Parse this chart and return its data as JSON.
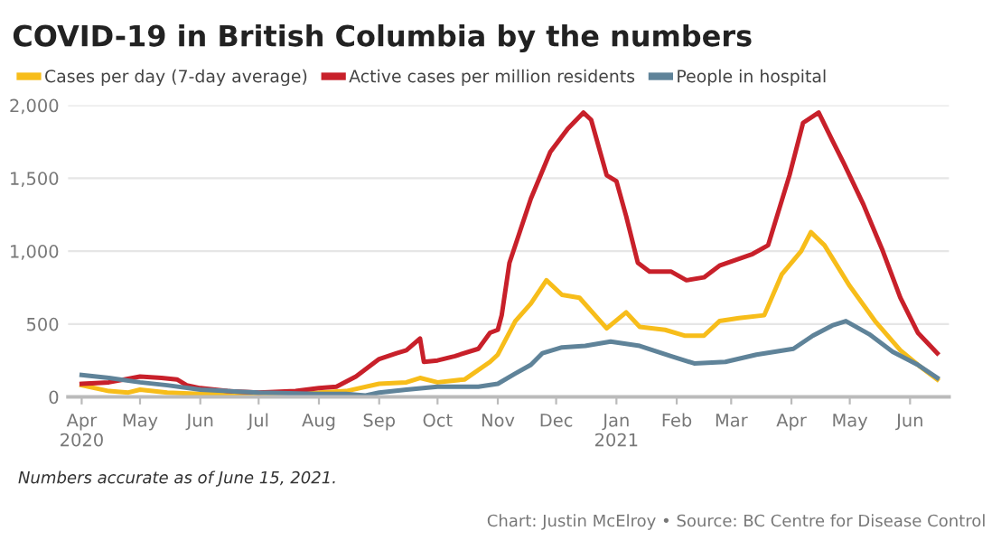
{
  "chart_data": {
    "type": "line",
    "title": "COVID-19 in British Columbia by the numbers",
    "annotations": [
      "Numbers accurate as of June 15, 2021.",
      "Chart: Justin McElroy • Source: BC Centre for Disease Control"
    ],
    "legend": "top left",
    "grid": "y",
    "marker": "none",
    "line_style": "solid",
    "xlim": [
      "2020-03-25",
      "2021-06-21"
    ],
    "xticks": [
      {
        "value": "2020-04-01",
        "label": "Apr\n2020"
      },
      {
        "value": "2020-05-01",
        "label": "May"
      },
      {
        "value": "2020-06-01",
        "label": "Jun"
      },
      {
        "value": "2020-07-01",
        "label": "Jul"
      },
      {
        "value": "2020-08-01",
        "label": "Aug"
      },
      {
        "value": "2020-09-01",
        "label": "Sep"
      },
      {
        "value": "2020-10-01",
        "label": "Oct"
      },
      {
        "value": "2020-11-01",
        "label": "Nov"
      },
      {
        "value": "2020-12-01",
        "label": "Dec"
      },
      {
        "value": "2021-01-01",
        "label": "Jan\n2021"
      },
      {
        "value": "2021-02-01",
        "label": "Feb"
      },
      {
        "value": "2021-03-01",
        "label": "Mar"
      },
      {
        "value": "2021-04-01",
        "label": "Apr"
      },
      {
        "value": "2021-05-01",
        "label": "May"
      },
      {
        "value": "2021-06-01",
        "label": "Jun"
      }
    ],
    "ylim": [
      0,
      2000
    ],
    "yticks": [
      0,
      {
        "value": 500,
        "label": "500"
      },
      {
        "value": 1000,
        "label": "1,000"
      },
      {
        "value": 1500,
        "label": "1,500"
      },
      {
        "value": 2000,
        "label": "2,000"
      }
    ],
    "series": [
      {
        "name": "Cases per day (7-day average)",
        "color": "#f7bd1a",
        "x": [
          "2020-04-01",
          "2020-04-15",
          "2020-04-25",
          "2020-05-01",
          "2020-05-15",
          "2020-06-01",
          "2020-07-01",
          "2020-08-01",
          "2020-08-15",
          "2020-09-01",
          "2020-09-15",
          "2020-09-22",
          "2020-10-01",
          "2020-10-15",
          "2020-10-28",
          "2020-11-01",
          "2020-11-10",
          "2020-11-18",
          "2020-11-26",
          "2020-12-04",
          "2020-12-13",
          "2020-12-21",
          "2020-12-27",
          "2021-01-06",
          "2021-01-13",
          "2021-01-26",
          "2021-02-05",
          "2021-02-15",
          "2021-02-23",
          "2021-03-05",
          "2021-03-18",
          "2021-03-27",
          "2021-04-06",
          "2021-04-11",
          "2021-04-18",
          "2021-05-01",
          "2021-05-14",
          "2021-05-27",
          "2021-06-05",
          "2021-06-15"
        ],
        "values": [
          80,
          40,
          30,
          50,
          30,
          20,
          20,
          30,
          40,
          90,
          100,
          130,
          100,
          120,
          240,
          290,
          520,
          640,
          800,
          700,
          680,
          560,
          470,
          580,
          480,
          460,
          420,
          420,
          520,
          540,
          560,
          840,
          1000,
          1130,
          1040,
          760,
          520,
          320,
          220,
          120
        ]
      },
      {
        "name": "Active cases per million residents",
        "color": "#c8202a",
        "x": [
          "2020-04-01",
          "2020-04-15",
          "2020-05-01",
          "2020-05-12",
          "2020-05-20",
          "2020-05-25",
          "2020-06-01",
          "2020-06-15",
          "2020-07-01",
          "2020-07-20",
          "2020-08-01",
          "2020-08-10",
          "2020-08-20",
          "2020-09-01",
          "2020-09-10",
          "2020-09-15",
          "2020-09-22",
          "2020-09-24",
          "2020-10-01",
          "2020-10-10",
          "2020-10-22",
          "2020-10-28",
          "2020-11-01",
          "2020-11-03",
          "2020-11-07",
          "2020-11-12",
          "2020-11-18",
          "2020-11-28",
          "2020-12-07",
          "2020-12-15",
          "2020-12-19",
          "2020-12-27",
          "2021-01-01",
          "2021-01-06",
          "2021-01-12",
          "2021-01-18",
          "2021-01-29",
          "2021-02-06",
          "2021-02-15",
          "2021-02-23",
          "2021-03-12",
          "2021-03-20",
          "2021-03-31",
          "2021-04-07",
          "2021-04-15",
          "2021-04-22",
          "2021-04-28",
          "2021-05-08",
          "2021-05-18",
          "2021-05-27",
          "2021-06-05",
          "2021-06-15"
        ],
        "values": [
          90,
          100,
          140,
          130,
          120,
          80,
          60,
          40,
          30,
          40,
          60,
          70,
          140,
          260,
          300,
          320,
          400,
          240,
          250,
          280,
          330,
          440,
          460,
          560,
          920,
          1120,
          1360,
          1680,
          1840,
          1950,
          1900,
          1520,
          1480,
          1240,
          920,
          860,
          860,
          800,
          820,
          900,
          980,
          1040,
          1520,
          1880,
          1950,
          1760,
          1600,
          1320,
          1000,
          680,
          440,
          300
        ]
      },
      {
        "name": "People in hospital",
        "color": "#5f8399",
        "x": [
          "2020-04-01",
          "2020-04-15",
          "2020-05-01",
          "2020-05-15",
          "2020-06-01",
          "2020-06-15",
          "2020-07-01",
          "2020-08-01",
          "2020-08-15",
          "2020-08-25",
          "2020-09-01",
          "2020-09-15",
          "2020-10-01",
          "2020-10-15",
          "2020-10-22",
          "2020-11-01",
          "2020-11-10",
          "2020-11-18",
          "2020-11-24",
          "2020-12-04",
          "2020-12-16",
          "2020-12-29",
          "2021-01-13",
          "2021-01-29",
          "2021-02-10",
          "2021-02-26",
          "2021-03-14",
          "2021-04-02",
          "2021-04-12",
          "2021-04-22",
          "2021-04-29",
          "2021-05-11",
          "2021-05-23",
          "2021-06-05",
          "2021-06-15"
        ],
        "values": [
          150,
          130,
          100,
          80,
          50,
          40,
          30,
          20,
          20,
          10,
          30,
          50,
          70,
          70,
          70,
          90,
          160,
          220,
          300,
          340,
          350,
          380,
          350,
          280,
          230,
          240,
          290,
          330,
          420,
          490,
          520,
          430,
          310,
          220,
          130
        ]
      }
    ]
  }
}
